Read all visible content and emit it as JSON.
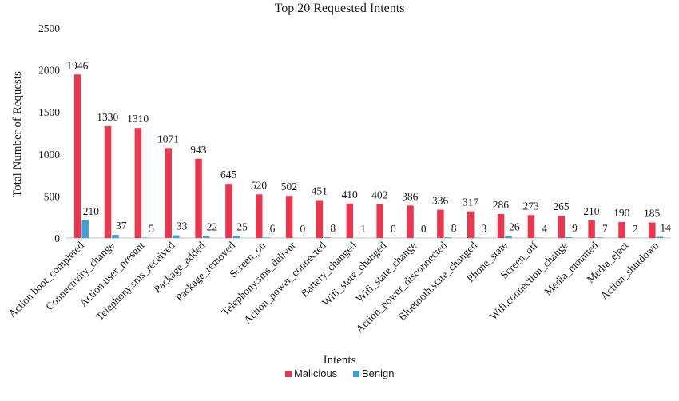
{
  "chart_data": {
    "type": "bar",
    "title": "Top 20 Requested Intents",
    "xlabel": "Intents",
    "ylabel": "Total Number of Requests",
    "ylim": [
      0,
      2500
    ],
    "yticks": [
      0,
      500,
      1000,
      1500,
      2000,
      2500
    ],
    "grid": false,
    "legend_position": "bottom",
    "categories": [
      "Action.boot_completed",
      "Connectivity_change",
      "Action.user_present",
      "Telephony.sms_received",
      "Package_added",
      "Package_removed",
      "Screen_on",
      "Telephony.sms_deliver",
      "Action_power_connected",
      "Battery_changed",
      "Wifi_state_changed",
      "Wifi_state_change",
      "Action_power_disconnected",
      "Bluetooth.state_changed",
      "Phone_state",
      "Screen_off",
      "Wifi.connection_change",
      "Media_mounted",
      "Media_eject",
      "Action_shutdown"
    ],
    "series": [
      {
        "name": "Malicious",
        "color": "#e8374e",
        "values": [
          1946,
          1330,
          1310,
          1071,
          943,
          645,
          520,
          502,
          451,
          410,
          402,
          386,
          336,
          317,
          286,
          273,
          265,
          210,
          190,
          185
        ]
      },
      {
        "name": "Benign",
        "color": "#3f9ed8",
        "values": [
          210,
          37,
          5,
          33,
          22,
          25,
          6,
          0,
          8,
          1,
          0,
          0,
          8,
          3,
          26,
          4,
          9,
          7,
          2,
          14
        ]
      }
    ]
  }
}
